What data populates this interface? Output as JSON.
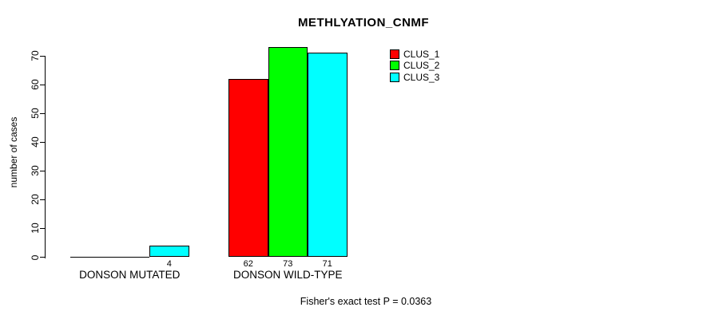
{
  "title": "METHLYATION_CNMF",
  "chart_data": {
    "type": "bar",
    "title": "METHLYATION_CNMF",
    "xlabel": "",
    "ylabel": "number of cases",
    "categories": [
      "DONSON MUTATED",
      "DONSON WILD-TYPE"
    ],
    "series": [
      {
        "name": "CLUS_1",
        "color": "#ff0000",
        "values": [
          0,
          62
        ],
        "bar_labels": [
          "",
          "62"
        ]
      },
      {
        "name": "CLUS_2",
        "color": "#00ff00",
        "values": [
          0,
          73
        ],
        "bar_labels": [
          "",
          "73"
        ]
      },
      {
        "name": "CLUS_3",
        "color": "#00ffff",
        "values": [
          4,
          71
        ],
        "bar_labels": [
          "4",
          "71"
        ]
      }
    ],
    "yticks": [
      0,
      10,
      20,
      30,
      40,
      50,
      60,
      70
    ],
    "ylim": [
      0,
      70
    ],
    "grid": false,
    "legend_position": "top-right",
    "legend_entries": [
      "CLUS_1",
      "CLUS_2",
      "CLUS_3"
    ],
    "annotation": "Fisher's exact test P = 0.0363"
  }
}
